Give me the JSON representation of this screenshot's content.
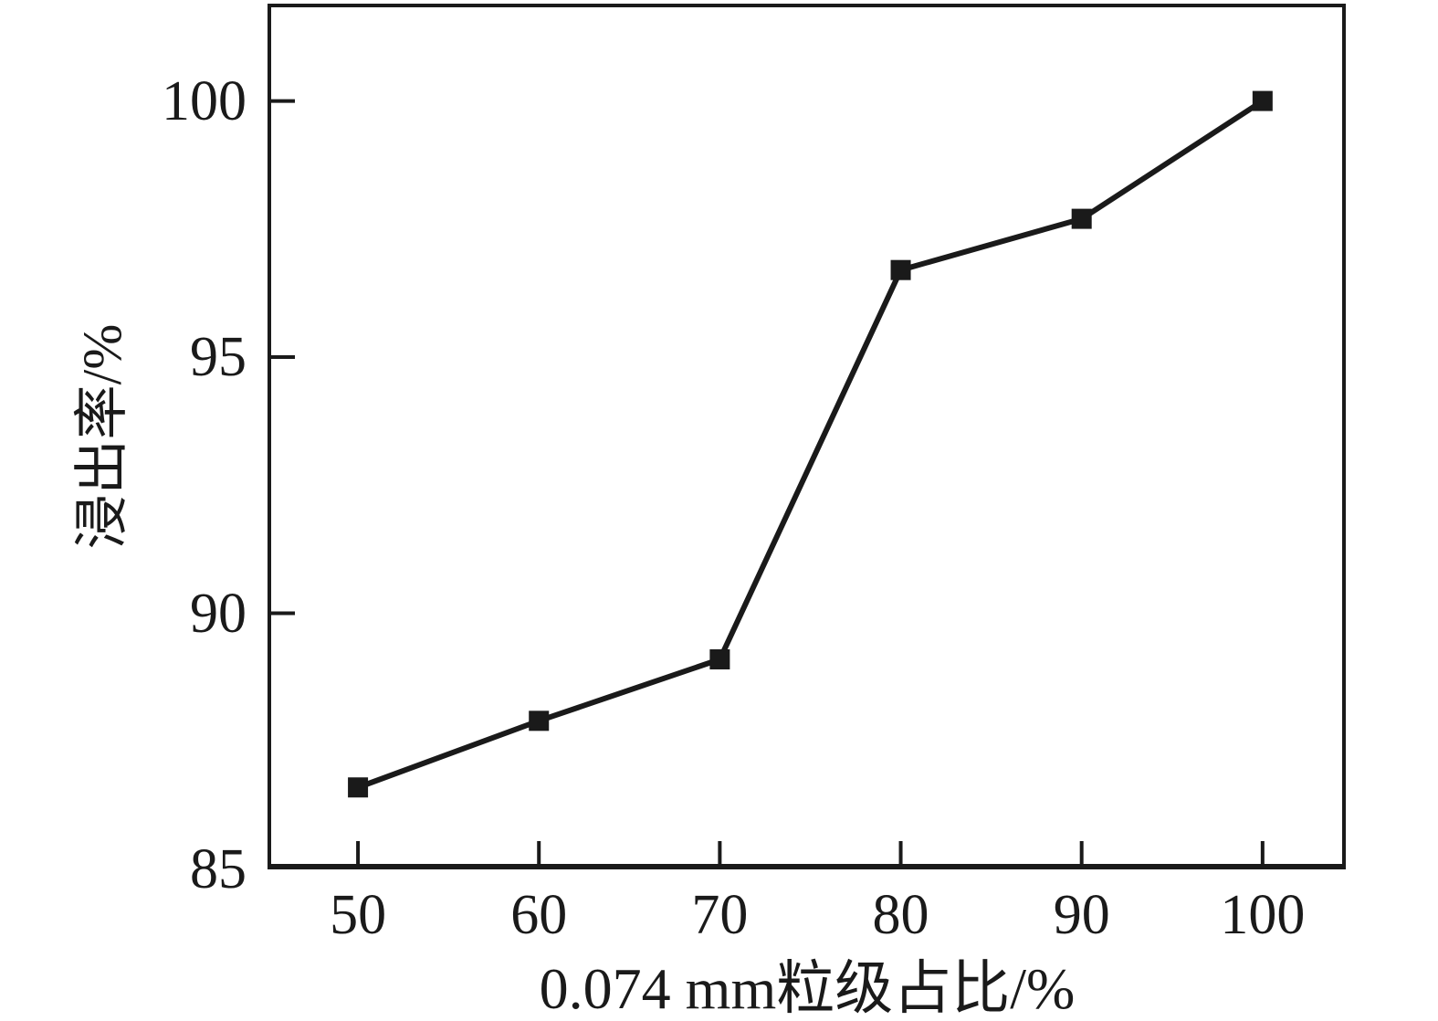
{
  "figure": {
    "background": "#ffffff",
    "ink_color": "#1a1a1a"
  },
  "chart_data": {
    "type": "line",
    "title": "",
    "xlabel": "0.074 mm粒级占比/%",
    "ylabel": "浸出率/%",
    "x": [
      50,
      60,
      70,
      80,
      90,
      100
    ],
    "series": [
      {
        "name": "浸出率",
        "values": [
          86.6,
          87.9,
          89.1,
          96.7,
          97.7,
          100.0
        ],
        "color": "#1a1a1a",
        "marker": "filled-square"
      }
    ],
    "xticks": [
      50,
      60,
      70,
      80,
      90,
      100
    ],
    "yticks": [
      85,
      90,
      95,
      100
    ],
    "xlim": [
      45,
      104.6
    ],
    "ylim": [
      85,
      101.9
    ],
    "grid": false,
    "legend": "none",
    "frame": "full-box",
    "tick_direction": "in"
  }
}
